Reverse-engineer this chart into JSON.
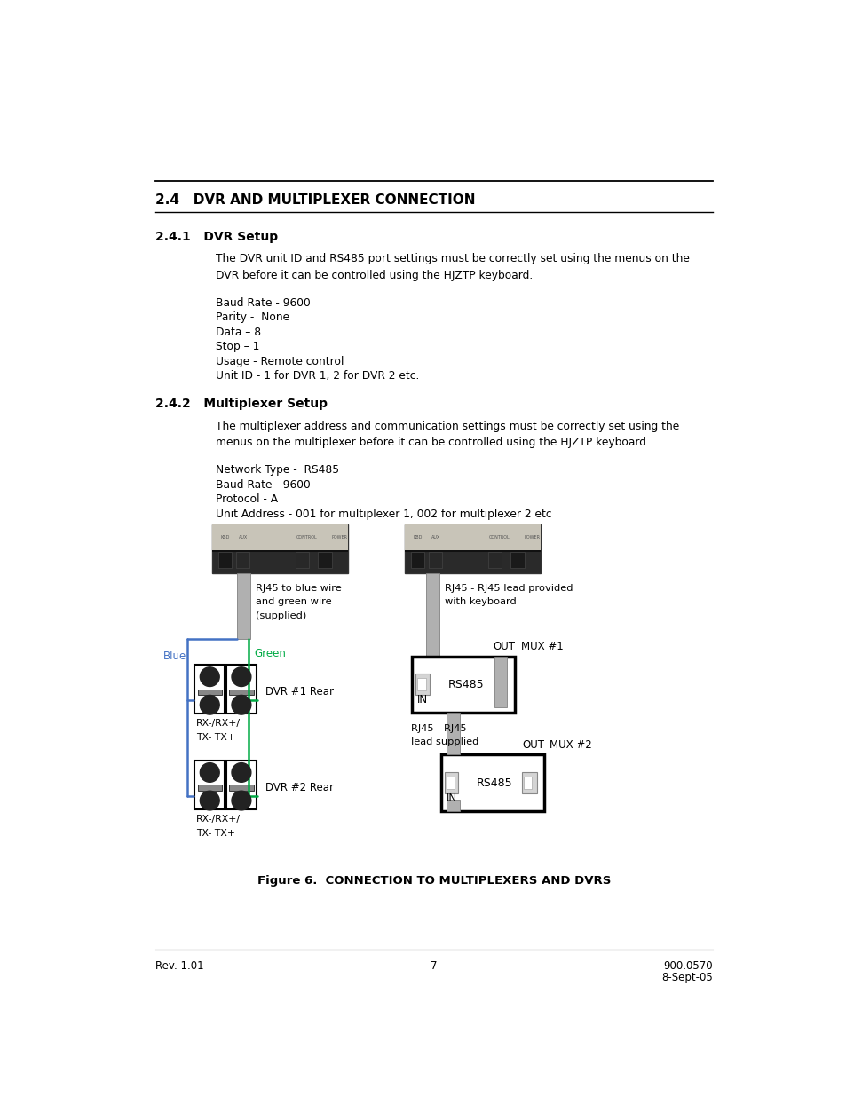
{
  "bg_color": "#ffffff",
  "page_width": 9.54,
  "page_height": 12.35,
  "section_title": "2.4   DVR AND MULTIPLEXER CONNECTION",
  "subsection1_title": "2.4.1   DVR Setup",
  "subsection1_body1": "The DVR unit ID and RS485 port settings must be correctly set using the menus on the",
  "subsection1_body2": "DVR before it can be controlled using the HJZTP keyboard.",
  "subsection1_list": [
    "Baud Rate - 9600",
    "Parity -  None",
    "Data – 8",
    "Stop – 1",
    "Usage - Remote control",
    "Unit ID - 1 for DVR 1, 2 for DVR 2 etc."
  ],
  "subsection2_title": "2.4.2   Multiplexer Setup",
  "subsection2_body1": "The multiplexer address and communication settings must be correctly set using the",
  "subsection2_body2": "menus on the multiplexer before it can be controlled using the HJZTP keyboard.",
  "subsection2_list": [
    "Network Type -  RS485",
    "Baud Rate - 9600",
    "Protocol - A",
    "Unit Address - 001 for multiplexer 1, 002 for multiplexer 2 etc"
  ],
  "figure_caption": "Figure 6.  CONNECTION TO MULTIPLEXERS AND DVRS",
  "footer_left": "Rev. 1.01",
  "footer_center": "7",
  "footer_right1": "900.0570",
  "footer_right2": "8-Sept-05",
  "dvr1_label": "DVR #1 Rear",
  "dvr2_label": "DVR #2 Rear",
  "rx_label1": "RX-/RX+/",
  "rx_label2": "TX- TX+",
  "mux1_label": "MUX #1",
  "mux2_label": "MUX #2",
  "blue_label": "Blue",
  "green_label": "Green",
  "rj45_dvr_line1": "RJ45 to blue wire",
  "rj45_dvr_line2": "and green wire",
  "rj45_dvr_line3": "(supplied)",
  "rj45_mux1_line1": "RJ45 - RJ45 lead provided",
  "rj45_mux1_line2": "with keyboard",
  "rj45_mux2_line1": "RJ45 - RJ45",
  "rj45_mux2_line2": "lead supplied",
  "out_label": "OUT",
  "in_label": "IN",
  "rs485_label": "RS485",
  "blue_color": "#4472C4",
  "green_color": "#00AA44",
  "photo_dark": "#2a2a2a",
  "photo_mid": "#4a4a4a",
  "photo_light_strip": "#c0c0c0",
  "cable_fill": "#b0b0b0",
  "cable_edge": "#808080",
  "mux_out_gray": "#b0b0b0"
}
